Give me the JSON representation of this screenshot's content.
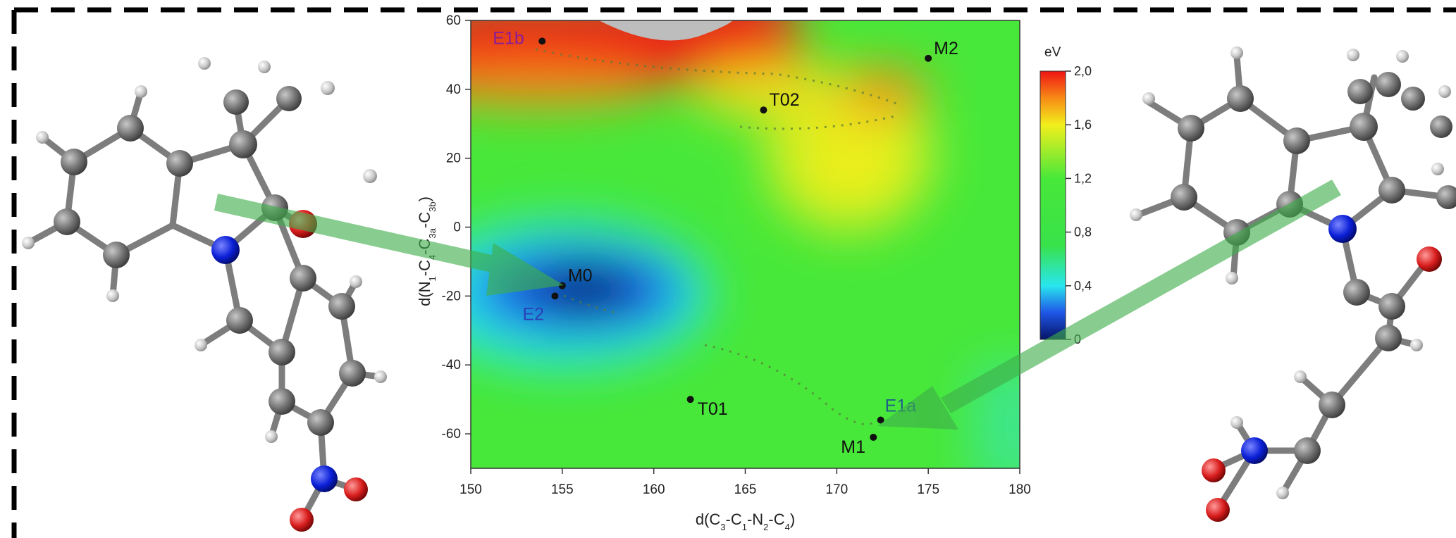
{
  "figure": {
    "border_color": "#000000",
    "molecule_colors": {
      "carbon": "#6e6e6e",
      "hydrogen": "#cfcfcf",
      "nitrogen": "#0a1fd6",
      "oxygen": "#d81c1c"
    },
    "arrow_color": "#3fae4a"
  },
  "chart_data": {
    "type": "heatmap",
    "title": "",
    "xlabel_parts": [
      "d(C",
      "3",
      "-C",
      "1",
      "-N",
      "2",
      "-C",
      "4",
      ")"
    ],
    "ylabel_parts": [
      "d(N",
      "1",
      "-C",
      "4",
      "-C",
      "3a",
      "-C",
      "3b",
      ")"
    ],
    "xlim": [
      150,
      180
    ],
    "ylim": [
      -70,
      60
    ],
    "xticks": [
      150,
      155,
      160,
      165,
      170,
      175,
      180
    ],
    "yticks": [
      -60,
      -40,
      -20,
      0,
      20,
      40,
      60
    ],
    "grid": false,
    "colorbar": {
      "title": "eV",
      "range": [
        0,
        2.0
      ],
      "ticks": [
        "0",
        "0,4",
        "0,8",
        "1,2",
        "1,6",
        "2,0"
      ],
      "tick_values": [
        0,
        0.4,
        0.8,
        1.2,
        1.6,
        2.0
      ],
      "stops": [
        {
          "v": 0.0,
          "color": "#061466"
        },
        {
          "v": 0.2,
          "color": "#1f56e8"
        },
        {
          "v": 0.4,
          "color": "#28e6ee"
        },
        {
          "v": 0.7,
          "color": "#39e24a"
        },
        {
          "v": 1.2,
          "color": "#48e83a"
        },
        {
          "v": 1.6,
          "color": "#f2ef1c"
        },
        {
          "v": 1.8,
          "color": "#f78a16"
        },
        {
          "v": 2.0,
          "color": "#ef1414"
        }
      ]
    },
    "points": [
      {
        "label": "E1b",
        "x": 153.9,
        "y": 54,
        "label_color": "#8a1c9a"
      },
      {
        "label": "M2",
        "x": 175,
        "y": 49,
        "label_color": "#111111"
      },
      {
        "label": "T02",
        "x": 166,
        "y": 34,
        "label_color": "#111111"
      },
      {
        "label": "M0",
        "x": 155,
        "y": -17,
        "label_color": "#111111"
      },
      {
        "label": "E2",
        "x": 154.6,
        "y": -20,
        "label_color": "#2a3fb8"
      },
      {
        "label": "T01",
        "x": 162,
        "y": -50,
        "label_color": "#111111"
      },
      {
        "label": "E1a",
        "x": 172.4,
        "y": -56,
        "label_color": "#1d5f8a"
      },
      {
        "label": "M1",
        "x": 172,
        "y": -61,
        "label_color": "#111111"
      }
    ]
  }
}
